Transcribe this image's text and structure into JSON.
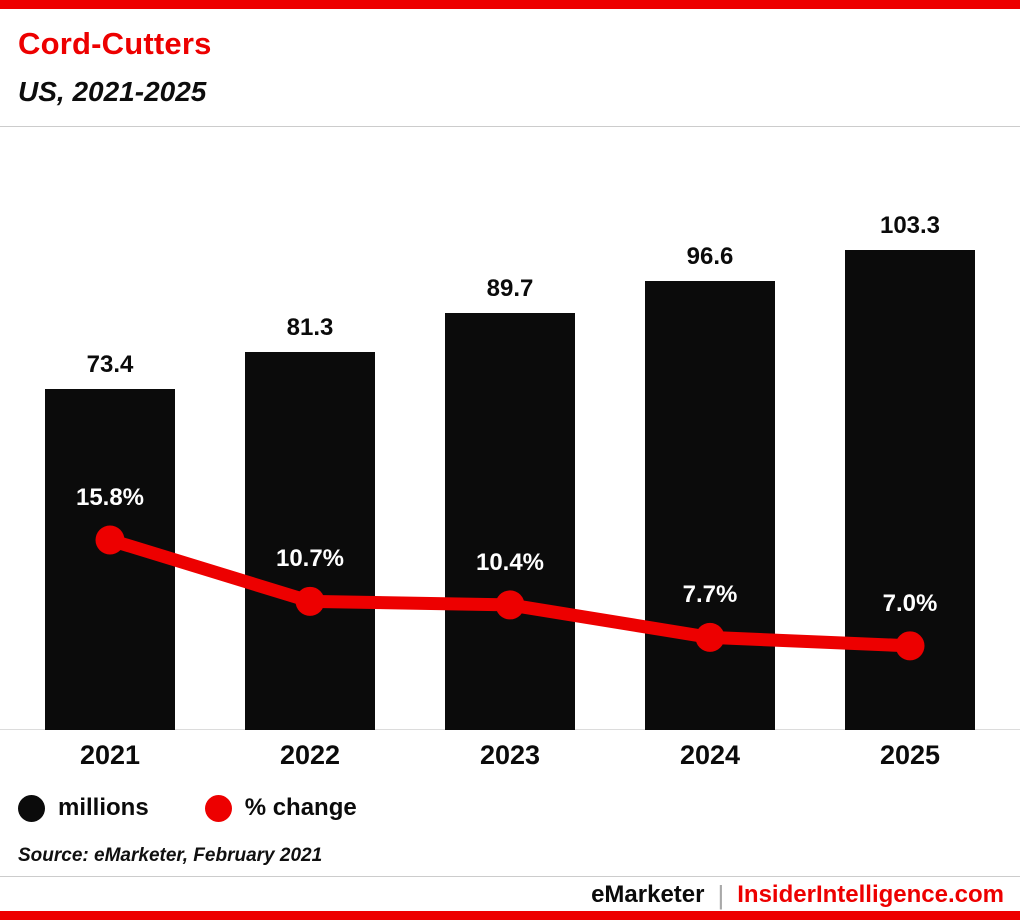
{
  "chart_data": {
    "type": "bar+line",
    "title": "Cord-Cutters",
    "subtitle": "US, 2021-2025",
    "categories": [
      "2021",
      "2022",
      "2023",
      "2024",
      "2025"
    ],
    "series": [
      {
        "name": "millions",
        "type": "bar",
        "color": "#0b0b0b",
        "values": [
          73.4,
          81.3,
          89.7,
          96.6,
          103.3
        ],
        "labels": [
          "73.4",
          "81.3",
          "89.7",
          "96.6",
          "103.3"
        ]
      },
      {
        "name": "% change",
        "type": "line",
        "color": "#ed0000",
        "values": [
          15.8,
          10.7,
          10.4,
          7.7,
          7.0
        ],
        "labels": [
          "15.8%",
          "10.7%",
          "10.4%",
          "7.7%",
          "7.0%"
        ]
      }
    ],
    "legend": [
      {
        "label": "millions",
        "color": "#0b0b0b"
      },
      {
        "label": "% change",
        "color": "#ed0000"
      }
    ],
    "legend_position": "bottom-left",
    "grid": false,
    "ylim_bars": [
      0,
      110
    ],
    "ylim_line": [
      0,
      18
    ]
  },
  "source": "Source: eMarketer, February 2021",
  "footer": {
    "brand_left": "eMarketer",
    "separator": "|",
    "brand_right": "InsiderIntelligence.com"
  },
  "colors": {
    "accent": "#ed0000",
    "bar": "#0b0b0b",
    "divider": "#cccccc"
  }
}
